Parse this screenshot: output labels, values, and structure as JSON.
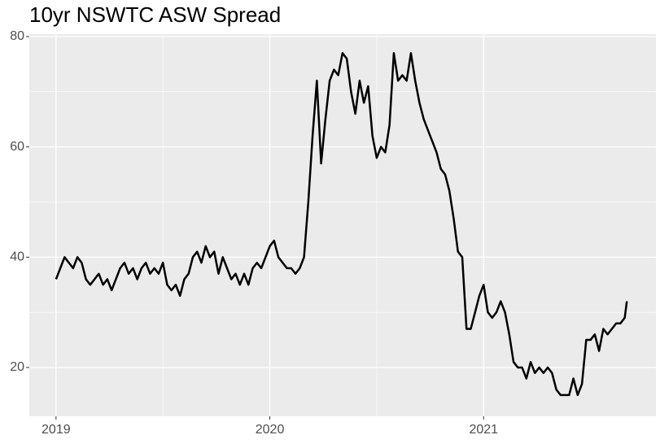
{
  "chart_data": {
    "type": "line",
    "title": "10yr NSWTC ASW Spread",
    "x": [
      2019.0,
      2019.02,
      2019.04,
      2019.06,
      2019.08,
      2019.1,
      2019.12,
      2019.14,
      2019.16,
      2019.18,
      2019.2,
      2019.22,
      2019.24,
      2019.26,
      2019.28,
      2019.3,
      2019.32,
      2019.34,
      2019.36,
      2019.38,
      2019.4,
      2019.42,
      2019.44,
      2019.46,
      2019.48,
      2019.5,
      2019.52,
      2019.54,
      2019.56,
      2019.58,
      2019.6,
      2019.62,
      2019.64,
      2019.66,
      2019.68,
      2019.7,
      2019.72,
      2019.74,
      2019.76,
      2019.78,
      2019.8,
      2019.82,
      2019.84,
      2019.86,
      2019.88,
      2019.9,
      2019.92,
      2019.94,
      2019.96,
      2019.98,
      2020.0,
      2020.02,
      2020.04,
      2020.06,
      2020.08,
      2020.1,
      2020.12,
      2020.14,
      2020.16,
      2020.18,
      2020.2,
      2020.22,
      2020.24,
      2020.26,
      2020.28,
      2020.3,
      2020.32,
      2020.34,
      2020.36,
      2020.38,
      2020.4,
      2020.42,
      2020.44,
      2020.46,
      2020.48,
      2020.5,
      2020.52,
      2020.54,
      2020.56,
      2020.58,
      2020.6,
      2020.62,
      2020.64,
      2020.66,
      2020.68,
      2020.7,
      2020.72,
      2020.74,
      2020.76,
      2020.78,
      2020.8,
      2020.82,
      2020.84,
      2020.86,
      2020.88,
      2020.9,
      2020.92,
      2020.94,
      2020.96,
      2020.98,
      2021.0,
      2021.02,
      2021.04,
      2021.06,
      2021.08,
      2021.1,
      2021.12,
      2021.14,
      2021.16,
      2021.18,
      2021.2,
      2021.22,
      2021.24,
      2021.26,
      2021.28,
      2021.3,
      2021.32,
      2021.34,
      2021.36,
      2021.38,
      2021.4,
      2021.42,
      2021.44,
      2021.46,
      2021.48,
      2021.5,
      2021.52,
      2021.54,
      2021.56,
      2021.58,
      2021.6,
      2021.62,
      2021.64,
      2021.66,
      2021.67
    ],
    "series": [
      {
        "color": "#000000",
        "values": [
          36,
          38,
          40,
          39,
          38,
          40,
          39,
          36,
          35,
          36,
          37,
          35,
          36,
          34,
          36,
          38,
          39,
          37,
          38,
          36,
          38,
          39,
          37,
          38,
          37,
          39,
          35,
          34,
          35,
          33,
          36,
          37,
          40,
          41,
          39,
          42,
          40,
          41,
          37,
          40,
          38,
          36,
          37,
          35,
          37,
          35,
          38,
          39,
          38,
          40,
          42,
          43,
          40,
          39,
          38,
          38,
          37,
          38,
          40,
          50,
          62,
          72,
          57,
          65,
          72,
          74,
          73,
          77,
          76,
          70,
          66,
          72,
          68,
          71,
          62,
          58,
          60,
          59,
          64,
          77,
          72,
          73,
          72,
          77,
          72,
          68,
          65,
          63,
          61,
          59,
          56,
          55,
          52,
          47,
          41,
          40,
          27,
          27,
          30,
          33,
          35,
          30,
          29,
          30,
          32,
          30,
          26,
          21,
          20,
          20,
          18,
          21,
          19,
          20,
          19,
          20,
          19,
          16,
          15,
          15,
          15,
          18,
          15,
          17,
          25,
          25,
          26,
          23,
          27,
          26,
          27,
          28,
          28,
          29,
          32
        ]
      }
    ],
    "xlim": [
      2018.875,
      2021.806
    ],
    "xticks": [
      2019,
      2020,
      2021
    ],
    "ylim": [
      11.15,
      80.44
    ],
    "yticks": [
      20,
      40,
      60,
      80
    ],
    "grid": true
  }
}
